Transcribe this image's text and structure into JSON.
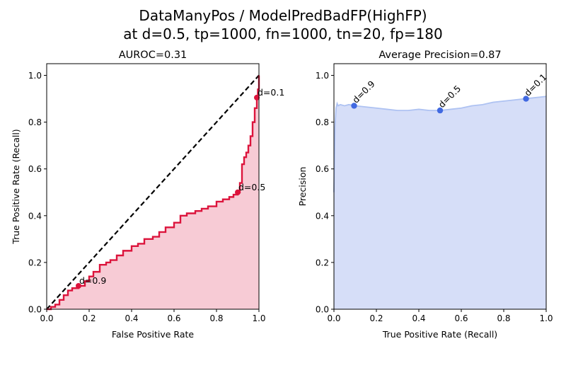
{
  "figure": {
    "title_line1": "DataManyPos / ModelPredBadFP(HighFP)",
    "title_line2": "at d=0.5, tp=1000, fn=1000, tn=20, fp=180"
  },
  "colors": {
    "roc_line": "#dc143c",
    "roc_fill": "#f7cbd5",
    "diagonal": "#000000",
    "pr_line": "#aec2f2",
    "pr_fill": "#d6def8",
    "pr_point": "#4169e1"
  },
  "chart_data": [
    {
      "type": "area",
      "title": "AUROC=0.31",
      "xlabel": "False Positive Rate",
      "ylabel": "True Positive Rate (Recall)",
      "xlim": [
        0,
        1
      ],
      "ylim": [
        0,
        1.05
      ],
      "xticks": [
        "0.0",
        "0.2",
        "0.4",
        "0.6",
        "0.8",
        "1.0"
      ],
      "yticks": [
        "0.0",
        "0.2",
        "0.4",
        "0.6",
        "0.8",
        "1.0"
      ],
      "grid": false,
      "series": [
        {
          "x": [
            0.0,
            0.02,
            0.04,
            0.06,
            0.08,
            0.1,
            0.12,
            0.15,
            0.18,
            0.2,
            0.22,
            0.25,
            0.28,
            0.3,
            0.33,
            0.36,
            0.4,
            0.43,
            0.46,
            0.5,
            0.53,
            0.56,
            0.6,
            0.63,
            0.66,
            0.7,
            0.73,
            0.76,
            0.8,
            0.83,
            0.86,
            0.88,
            0.9,
            0.91,
            0.92,
            0.93,
            0.94,
            0.95,
            0.96,
            0.97,
            0.98,
            0.99,
            0.995,
            1.0
          ],
          "y": [
            0.0,
            0.01,
            0.02,
            0.04,
            0.06,
            0.08,
            0.09,
            0.1,
            0.12,
            0.14,
            0.16,
            0.19,
            0.2,
            0.21,
            0.23,
            0.25,
            0.27,
            0.28,
            0.3,
            0.31,
            0.33,
            0.35,
            0.37,
            0.4,
            0.41,
            0.42,
            0.43,
            0.44,
            0.46,
            0.47,
            0.48,
            0.49,
            0.5,
            0.54,
            0.62,
            0.65,
            0.67,
            0.7,
            0.74,
            0.8,
            0.86,
            0.9,
            0.94,
            1.0
          ]
        }
      ],
      "diagonal": {
        "x": [
          0,
          1
        ],
        "y": [
          0,
          1
        ]
      },
      "points": [
        {
          "label": "d=0.9",
          "x": 0.15,
          "y": 0.1
        },
        {
          "label": "d=0.5",
          "x": 0.9,
          "y": 0.5
        },
        {
          "label": "d=0.1",
          "x": 0.99,
          "y": 0.905
        }
      ]
    },
    {
      "type": "area",
      "title": "Average Precision=0.87",
      "xlabel": "True Positive Rate (Recall)",
      "ylabel": "Precision",
      "xlim": [
        0,
        1
      ],
      "ylim": [
        0,
        1.05
      ],
      "xticks": [
        "0.0",
        "0.2",
        "0.4",
        "0.6",
        "0.8",
        "1.0"
      ],
      "yticks": [
        "0.0",
        "0.2",
        "0.4",
        "0.6",
        "0.8",
        "1.0"
      ],
      "grid": false,
      "series": [
        {
          "x": [
            0.0,
            0.005,
            0.01,
            0.015,
            0.02,
            0.03,
            0.05,
            0.07,
            0.1,
            0.15,
            0.2,
            0.25,
            0.3,
            0.35,
            0.4,
            0.45,
            0.5,
            0.55,
            0.6,
            0.65,
            0.7,
            0.75,
            0.8,
            0.85,
            0.9,
            0.95,
            1.0
          ],
          "y": [
            0.5,
            0.78,
            0.86,
            0.88,
            0.87,
            0.875,
            0.87,
            0.875,
            0.87,
            0.865,
            0.86,
            0.855,
            0.85,
            0.85,
            0.855,
            0.85,
            0.85,
            0.855,
            0.86,
            0.87,
            0.875,
            0.885,
            0.89,
            0.895,
            0.9,
            0.905,
            0.91
          ]
        }
      ],
      "points": [
        {
          "label": "d=0.9",
          "x": 0.095,
          "y": 0.87
        },
        {
          "label": "d=0.5",
          "x": 0.5,
          "y": 0.85
        },
        {
          "label": "d=0.1",
          "x": 0.905,
          "y": 0.9
        }
      ]
    }
  ]
}
